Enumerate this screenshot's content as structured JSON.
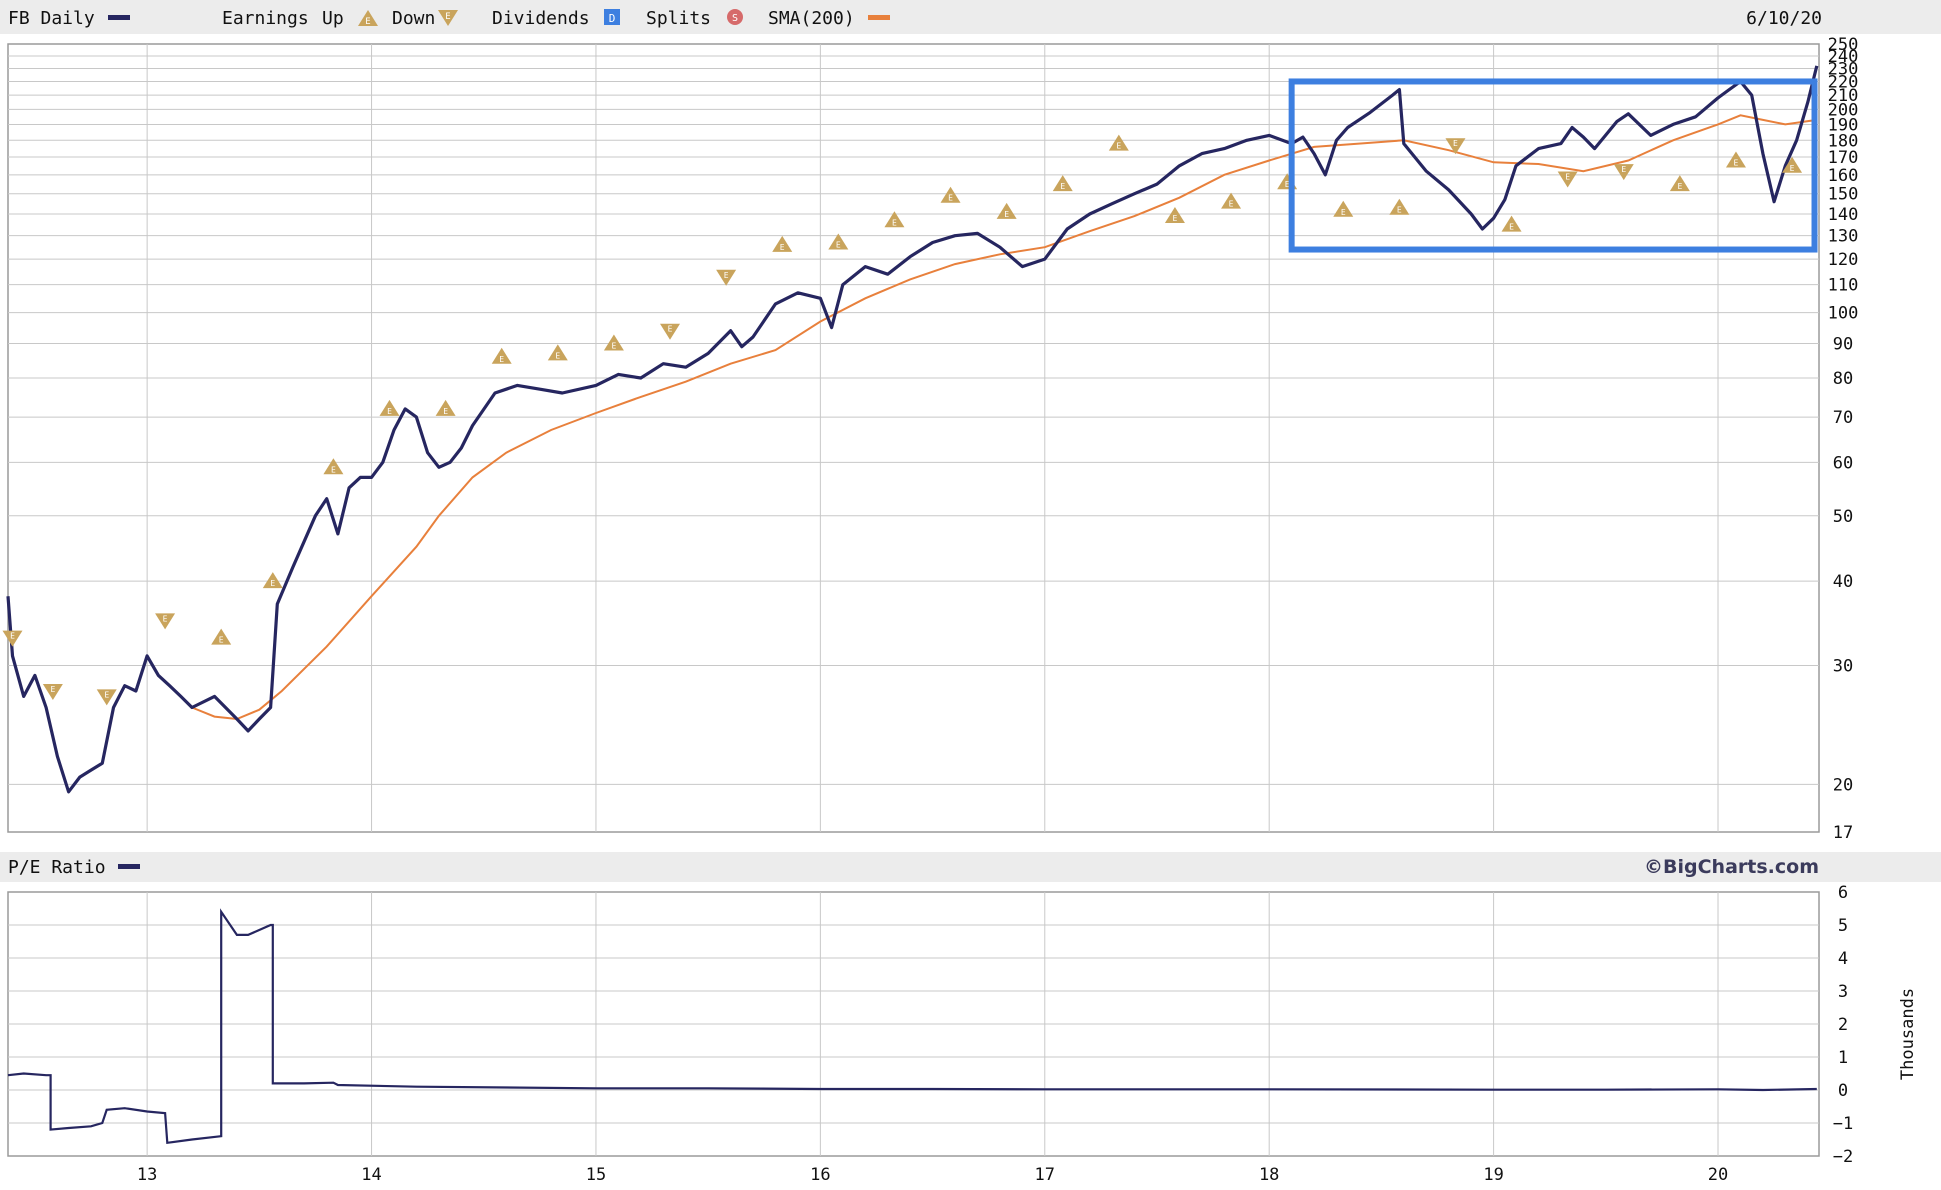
{
  "top_legend": {
    "ticker_label": "FB Daily",
    "earnings_label": "Earnings",
    "up_label": "Up",
    "down_label": "Down",
    "dividends_label": "Dividends",
    "dividends_badge": "D",
    "splits_label": "Splits",
    "splits_badge": "S",
    "sma_label": "SMA(200)",
    "date": "6/10/20"
  },
  "bottom_legend": {
    "label": "P/E Ratio",
    "brand": "©BigCharts.com"
  },
  "colors": {
    "price_line": "#262660",
    "sma_line": "#e8803c",
    "earnings_marker": "#c9a45c",
    "highlight_box": "#3d7fe0",
    "grid": "#c8c8c8",
    "legend_band": "#ececec",
    "dividends_badge": "#3d7fe0",
    "splits_badge": "#d66a6a"
  },
  "chart_data": [
    {
      "type": "line",
      "title": "FB Daily",
      "scale": "log",
      "ylim": [
        17,
        250
      ],
      "y_ticks": [
        17,
        20,
        30,
        40,
        50,
        60,
        70,
        80,
        90,
        100,
        110,
        120,
        130,
        140,
        150,
        160,
        170,
        180,
        190,
        200,
        210,
        220,
        230,
        240,
        250
      ],
      "x_ticks": [
        "13",
        "14",
        "15",
        "16",
        "17",
        "18",
        "19",
        "20"
      ],
      "grid": true,
      "legend_placement": "top",
      "series": [
        {
          "name": "FB Daily",
          "points": [
            [
              2012.38,
              38
            ],
            [
              2012.4,
              31
            ],
            [
              2012.45,
              27
            ],
            [
              2012.5,
              29
            ],
            [
              2012.55,
              26
            ],
            [
              2012.6,
              22
            ],
            [
              2012.65,
              19.5
            ],
            [
              2012.7,
              20.5
            ],
            [
              2012.75,
              21
            ],
            [
              2012.8,
              21.5
            ],
            [
              2012.85,
              26
            ],
            [
              2012.9,
              28
            ],
            [
              2012.95,
              27.5
            ],
            [
              2013.0,
              31
            ],
            [
              2013.05,
              29
            ],
            [
              2013.1,
              28
            ],
            [
              2013.15,
              27
            ],
            [
              2013.2,
              26
            ],
            [
              2013.3,
              27
            ],
            [
              2013.4,
              25
            ],
            [
              2013.45,
              24
            ],
            [
              2013.5,
              25
            ],
            [
              2013.55,
              26
            ],
            [
              2013.58,
              37
            ],
            [
              2013.65,
              42
            ],
            [
              2013.75,
              50
            ],
            [
              2013.8,
              53
            ],
            [
              2013.85,
              47
            ],
            [
              2013.9,
              55
            ],
            [
              2013.95,
              57
            ],
            [
              2014.0,
              57
            ],
            [
              2014.05,
              60
            ],
            [
              2014.1,
              67
            ],
            [
              2014.15,
              72
            ],
            [
              2014.2,
              70
            ],
            [
              2014.25,
              62
            ],
            [
              2014.3,
              59
            ],
            [
              2014.35,
              60
            ],
            [
              2014.4,
              63
            ],
            [
              2014.45,
              68
            ],
            [
              2014.55,
              76
            ],
            [
              2014.65,
              78
            ],
            [
              2014.75,
              77
            ],
            [
              2014.85,
              76
            ],
            [
              2015.0,
              78
            ],
            [
              2015.1,
              81
            ],
            [
              2015.2,
              80
            ],
            [
              2015.3,
              84
            ],
            [
              2015.4,
              83
            ],
            [
              2015.5,
              87
            ],
            [
              2015.6,
              94
            ],
            [
              2015.65,
              89
            ],
            [
              2015.7,
              92
            ],
            [
              2015.8,
              103
            ],
            [
              2015.9,
              107
            ],
            [
              2016.0,
              105
            ],
            [
              2016.05,
              95
            ],
            [
              2016.1,
              110
            ],
            [
              2016.2,
              117
            ],
            [
              2016.3,
              114
            ],
            [
              2016.4,
              121
            ],
            [
              2016.5,
              127
            ],
            [
              2016.6,
              130
            ],
            [
              2016.7,
              131
            ],
            [
              2016.8,
              125
            ],
            [
              2016.9,
              117
            ],
            [
              2017.0,
              120
            ],
            [
              2017.1,
              133
            ],
            [
              2017.2,
              140
            ],
            [
              2017.3,
              145
            ],
            [
              2017.4,
              150
            ],
            [
              2017.5,
              155
            ],
            [
              2017.6,
              165
            ],
            [
              2017.7,
              172
            ],
            [
              2017.8,
              175
            ],
            [
              2017.9,
              180
            ],
            [
              2018.0,
              183
            ],
            [
              2018.1,
              178
            ],
            [
              2018.15,
              182
            ],
            [
              2018.2,
              172
            ],
            [
              2018.25,
              160
            ],
            [
              2018.3,
              180
            ],
            [
              2018.35,
              188
            ],
            [
              2018.45,
              198
            ],
            [
              2018.55,
              210
            ],
            [
              2018.58,
              214
            ],
            [
              2018.6,
              178
            ],
            [
              2018.7,
              162
            ],
            [
              2018.8,
              152
            ],
            [
              2018.9,
              140
            ],
            [
              2018.95,
              133
            ],
            [
              2019.0,
              138
            ],
            [
              2019.05,
              147
            ],
            [
              2019.1,
              165
            ],
            [
              2019.2,
              175
            ],
            [
              2019.3,
              178
            ],
            [
              2019.35,
              188
            ],
            [
              2019.4,
              182
            ],
            [
              2019.45,
              175
            ],
            [
              2019.55,
              192
            ],
            [
              2019.6,
              197
            ],
            [
              2019.7,
              183
            ],
            [
              2019.8,
              190
            ],
            [
              2019.9,
              195
            ],
            [
              2020.0,
              208
            ],
            [
              2020.05,
              214
            ],
            [
              2020.1,
              220
            ],
            [
              2020.15,
              210
            ],
            [
              2020.2,
              172
            ],
            [
              2020.25,
              146
            ],
            [
              2020.3,
              165
            ],
            [
              2020.35,
              180
            ],
            [
              2020.4,
              205
            ],
            [
              2020.44,
              232
            ]
          ]
        },
        {
          "name": "SMA(200)",
          "points": [
            [
              2013.2,
              26
            ],
            [
              2013.3,
              25.2
            ],
            [
              2013.4,
              25
            ],
            [
              2013.5,
              25.8
            ],
            [
              2013.6,
              27.5
            ],
            [
              2013.8,
              32
            ],
            [
              2014.0,
              38
            ],
            [
              2014.2,
              45
            ],
            [
              2014.3,
              50
            ],
            [
              2014.45,
              57
            ],
            [
              2014.6,
              62
            ],
            [
              2014.8,
              67
            ],
            [
              2015.0,
              71
            ],
            [
              2015.2,
              75
            ],
            [
              2015.4,
              79
            ],
            [
              2015.6,
              84
            ],
            [
              2015.8,
              88
            ],
            [
              2016.0,
              97
            ],
            [
              2016.2,
              105
            ],
            [
              2016.4,
              112
            ],
            [
              2016.6,
              118
            ],
            [
              2016.8,
              122
            ],
            [
              2017.0,
              125
            ],
            [
              2017.2,
              132
            ],
            [
              2017.4,
              139
            ],
            [
              2017.6,
              148
            ],
            [
              2017.8,
              160
            ],
            [
              2018.0,
              168
            ],
            [
              2018.2,
              176
            ],
            [
              2018.4,
              178
            ],
            [
              2018.6,
              180
            ],
            [
              2018.8,
              174
            ],
            [
              2019.0,
              167
            ],
            [
              2019.2,
              166
            ],
            [
              2019.4,
              162
            ],
            [
              2019.6,
              168
            ],
            [
              2019.8,
              180
            ],
            [
              2020.0,
              190
            ],
            [
              2020.1,
              196
            ],
            [
              2020.2,
              193
            ],
            [
              2020.3,
              190
            ],
            [
              2020.44,
              193
            ]
          ]
        }
      ],
      "earnings_markers": [
        {
          "x": 2012.4,
          "y": 33,
          "dir": "down"
        },
        {
          "x": 2012.58,
          "y": 27.5,
          "dir": "down"
        },
        {
          "x": 2012.82,
          "y": 27,
          "dir": "down"
        },
        {
          "x": 2013.08,
          "y": 35,
          "dir": "down"
        },
        {
          "x": 2013.33,
          "y": 33,
          "dir": "up"
        },
        {
          "x": 2013.56,
          "y": 40,
          "dir": "up"
        },
        {
          "x": 2013.83,
          "y": 59,
          "dir": "up"
        },
        {
          "x": 2014.08,
          "y": 72,
          "dir": "up"
        },
        {
          "x": 2014.33,
          "y": 72,
          "dir": "up"
        },
        {
          "x": 2014.58,
          "y": 86,
          "dir": "up"
        },
        {
          "x": 2014.83,
          "y": 87,
          "dir": "up"
        },
        {
          "x": 2015.08,
          "y": 90,
          "dir": "up"
        },
        {
          "x": 2015.33,
          "y": 94,
          "dir": "down"
        },
        {
          "x": 2015.58,
          "y": 113,
          "dir": "down"
        },
        {
          "x": 2015.83,
          "y": 126,
          "dir": "up"
        },
        {
          "x": 2016.08,
          "y": 127,
          "dir": "up"
        },
        {
          "x": 2016.33,
          "y": 137,
          "dir": "up"
        },
        {
          "x": 2016.58,
          "y": 149,
          "dir": "up"
        },
        {
          "x": 2016.83,
          "y": 141,
          "dir": "up"
        },
        {
          "x": 2017.08,
          "y": 155,
          "dir": "up"
        },
        {
          "x": 2017.33,
          "y": 178,
          "dir": "up"
        },
        {
          "x": 2017.58,
          "y": 139,
          "dir": "up"
        },
        {
          "x": 2017.83,
          "y": 146,
          "dir": "up"
        },
        {
          "x": 2018.08,
          "y": 156,
          "dir": "up"
        },
        {
          "x": 2018.33,
          "y": 142,
          "dir": "up"
        },
        {
          "x": 2018.58,
          "y": 143,
          "dir": "up"
        },
        {
          "x": 2018.83,
          "y": 177,
          "dir": "down"
        },
        {
          "x": 2019.08,
          "y": 135,
          "dir": "up"
        },
        {
          "x": 2019.33,
          "y": 158,
          "dir": "down"
        },
        {
          "x": 2019.58,
          "y": 162,
          "dir": "down"
        },
        {
          "x": 2019.83,
          "y": 155,
          "dir": "up"
        },
        {
          "x": 2020.08,
          "y": 168,
          "dir": "up"
        },
        {
          "x": 2020.33,
          "y": 165,
          "dir": "up"
        }
      ],
      "highlight_box": {
        "x_range": [
          2018.1,
          2020.43
        ],
        "y_range": [
          124,
          220
        ]
      }
    },
    {
      "type": "line",
      "title": "P/E Ratio",
      "ylabel": "Thousands",
      "ylim": [
        -2,
        6
      ],
      "y_ticks": [
        -2,
        -1,
        0,
        1,
        2,
        3,
        4,
        5,
        6
      ],
      "x_ticks": [
        "13",
        "14",
        "15",
        "16",
        "17",
        "18",
        "19",
        "20"
      ],
      "grid": true,
      "series": [
        {
          "name": "P/E Ratio",
          "points": [
            [
              2012.38,
              0.45
            ],
            [
              2012.45,
              0.5
            ],
            [
              2012.55,
              0.45
            ],
            [
              2012.57,
              0.45
            ],
            [
              2012.57,
              -1.2
            ],
            [
              2012.65,
              -1.15
            ],
            [
              2012.75,
              -1.1
            ],
            [
              2012.8,
              -1.0
            ],
            [
              2012.82,
              -0.6
            ],
            [
              2012.9,
              -0.55
            ],
            [
              2013.0,
              -0.65
            ],
            [
              2013.08,
              -0.7
            ],
            [
              2013.09,
              -1.6
            ],
            [
              2013.2,
              -1.5
            ],
            [
              2013.33,
              -1.4
            ],
            [
              2013.33,
              5.4
            ],
            [
              2013.4,
              4.7
            ],
            [
              2013.45,
              4.7
            ],
            [
              2013.55,
              5.0
            ],
            [
              2013.56,
              5.0
            ],
            [
              2013.56,
              0.2
            ],
            [
              2013.7,
              0.2
            ],
            [
              2013.83,
              0.22
            ],
            [
              2013.85,
              0.15
            ],
            [
              2014.2,
              0.1
            ],
            [
              2015.0,
              0.05
            ],
            [
              2015.5,
              0.05
            ],
            [
              2016.0,
              0.03
            ],
            [
              2016.5,
              0.03
            ],
            [
              2017.0,
              0.02
            ],
            [
              2018.0,
              0.02
            ],
            [
              2019.0,
              0.01
            ],
            [
              2019.5,
              0.01
            ],
            [
              2020.0,
              0.02
            ],
            [
              2020.2,
              0.0
            ],
            [
              2020.44,
              0.03
            ]
          ]
        }
      ]
    }
  ]
}
